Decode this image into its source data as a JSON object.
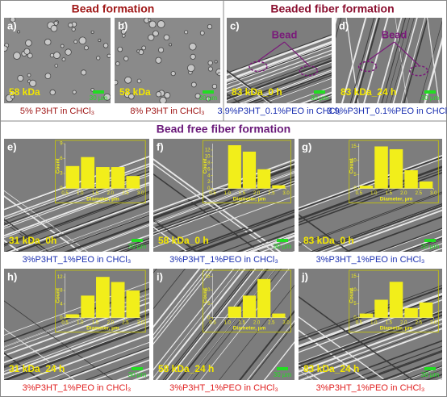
{
  "headers": {
    "bead": "Bead formation",
    "beaded": "Beaded fiber formation",
    "free": "Bead free fiber formation"
  },
  "panels": [
    {
      "label": "a)",
      "sample": "58 kDa",
      "caption": "5% P3HT in CHCl₃",
      "scale": "30 µm"
    },
    {
      "label": "b)",
      "sample": "58 kDa",
      "caption": "8% P3HT in CHCl₃",
      "scale": "30 µm"
    },
    {
      "label": "c)",
      "sample": "83 kDa_0 h",
      "caption": "3.9%P3HT_0.1%PEO in CHCl₃",
      "scale": "30 µm",
      "annotation": "Bead"
    },
    {
      "label": "d)",
      "sample": "83 kDa_24 h",
      "caption": "3.9%P3HT_0.1%PEO in CHCl₃",
      "scale": "30 µm",
      "annotation": "Bead"
    },
    {
      "label": "e)",
      "sample": "31 kDa_0h",
      "caption": "3%P3HT_1%PEO in CHCl₃",
      "scale": "30 µm",
      "hist": {
        "ylabel": "Count",
        "xlabel": "Diameter, µm",
        "bins": [
          0.5,
          1,
          1.5,
          2,
          2.5,
          3
        ],
        "counts": [
          4.5,
          6.3,
          4.3,
          4.3,
          2.5
        ],
        "ylim": [
          0,
          9
        ],
        "yticks": [
          0,
          3,
          6,
          9
        ],
        "xticks": [
          0.5,
          {
            "value": 1,
            "label": "1.0"
          },
          1.5,
          {
            "value": 2,
            "label": "2.0"
          },
          2.5,
          {
            "value": 3,
            "label": "3.0"
          }
        ]
      }
    },
    {
      "label": "f)",
      "sample": "58 kDa_0 h",
      "caption": "3%P3HT_1%PEO in CHCl₃",
      "scale": "30 µm",
      "hist": {
        "ylabel": "Count",
        "xlabel": "Diameter, µm",
        "bins": [
          0.5,
          1,
          1.5,
          2,
          2.5,
          3
        ],
        "counts": [
          0,
          13.5,
          11.5,
          6,
          1
        ],
        "ylim": [
          0,
          14
        ],
        "yticks": [
          0,
          2,
          4,
          6,
          8,
          10,
          12
        ],
        "xticks": [
          0.5,
          {
            "value": 1,
            "label": "1.0"
          },
          1.5,
          {
            "value": 2,
            "label": "2.0"
          },
          2.5,
          {
            "value": 3,
            "label": "3.0"
          }
        ]
      }
    },
    {
      "label": "g)",
      "sample": "83 kDa_0 h",
      "caption": "3%P3HT_1%PEO in CHCl₃",
      "scale": "30 µm",
      "hist": {
        "ylabel": "Count",
        "xlabel": "Diameter, µm",
        "bins": [
          0.5,
          1,
          1.5,
          2,
          2.5,
          3
        ],
        "counts": [
          1,
          15,
          14,
          6.5,
          2.5
        ],
        "ylim": [
          0,
          16
        ],
        "yticks": [
          0,
          5,
          10,
          15
        ],
        "xticks": [
          0.5,
          {
            "value": 1,
            "label": "1.0"
          },
          1.5,
          {
            "value": 2,
            "label": "2.0"
          },
          2.5,
          {
            "value": 3,
            "label": "3.0"
          }
        ]
      }
    },
    {
      "label": "h)",
      "sample": "31 kDa_24 h",
      "caption": "3%P3HT_1%PEO in CHCl₃",
      "scale": "30 µm",
      "hist": {
        "ylabel": "Count",
        "xlabel": "Diameter, µm",
        "bins": [
          0.5,
          1,
          1.5,
          2,
          2.5,
          3
        ],
        "counts": [
          1,
          6.5,
          12,
          10.5,
          8
        ],
        "ylim": [
          0,
          13
        ],
        "yticks": [
          0,
          4,
          8,
          12
        ],
        "xticks": [
          0.5,
          {
            "value": 1,
            "label": "1.0"
          },
          1.5,
          {
            "value": 2,
            "label": "2.0"
          },
          2.5,
          {
            "value": 3,
            "label": "3.0"
          }
        ]
      }
    },
    {
      "label": "i)",
      "sample": "58 kDa_24 h",
      "caption": "3%P3HT_1%PEO in CHCl₃",
      "scale": "30 µm",
      "hist": {
        "ylabel": "Count",
        "xlabel": "Diameter, µm",
        "bins": [
          0.5,
          1,
          1.5,
          2,
          2.5,
          3
        ],
        "counts": [
          0,
          4,
          8,
          14,
          1.5
        ],
        "ylim": [
          0,
          16
        ],
        "yticks": [
          0,
          5,
          10,
          15
        ],
        "xticks": [
          0.5,
          {
            "value": 1,
            "label": "1.0"
          },
          1.5,
          {
            "value": 2,
            "label": "2.0"
          },
          2.5,
          {
            "value": 3,
            "label": "3.0"
          }
        ]
      }
    },
    {
      "label": "j)",
      "sample": "83 kDa_24 h",
      "caption": "3%P3HT_1%PEO in CHCl₃",
      "scale": "30 µm",
      "hist": {
        "ylabel": "Count",
        "xlabel": "Diameter, µm",
        "bins": [
          0.5,
          1,
          1.5,
          2,
          2.5,
          3
        ],
        "counts": [
          1.5,
          6.5,
          13,
          3.5,
          5.5
        ],
        "ylim": [
          0,
          16
        ],
        "yticks": [
          0,
          5,
          10,
          15
        ],
        "xticks": [
          0.5,
          {
            "value": 1,
            "label": "1.0"
          },
          1.5,
          {
            "value": 2,
            "label": "2.0"
          },
          2.5,
          {
            "value": 3,
            "label": "3.0"
          }
        ]
      }
    }
  ]
}
